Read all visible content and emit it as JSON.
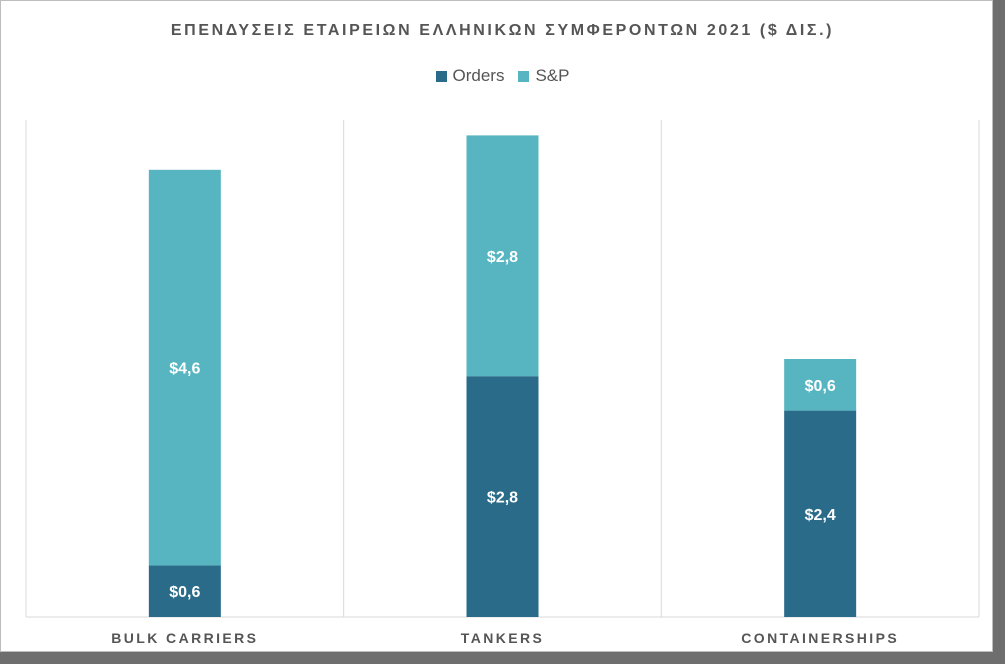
{
  "chart_data": {
    "type": "bar",
    "stacked": true,
    "title": "ΕΠΕΝΔΥΣΕΙΣ ΕΤΑΙΡΕΙΩΝ ΕΛΛΗΝΙΚΩΝ ΣΥΜΦΕΡΟΝΤΩΝ 2021 ($ ΔΙΣ.)",
    "categories": [
      "BULK CARRIERS",
      "TANKERS",
      "CONTAINERSHIPS"
    ],
    "series": [
      {
        "name": "Orders",
        "color": "#2a6b89",
        "values": [
          0.6,
          2.8,
          2.4
        ],
        "labels": [
          "$0,6",
          "$2,8",
          "$2,4"
        ]
      },
      {
        "name": "S&P",
        "color": "#57b5c1",
        "values": [
          4.6,
          2.8,
          0.6
        ],
        "labels": [
          "$4,6",
          "$2,8",
          "$0,6"
        ]
      }
    ],
    "ylim": [
      0,
      6
    ],
    "legend_position": "top",
    "grid": false
  }
}
